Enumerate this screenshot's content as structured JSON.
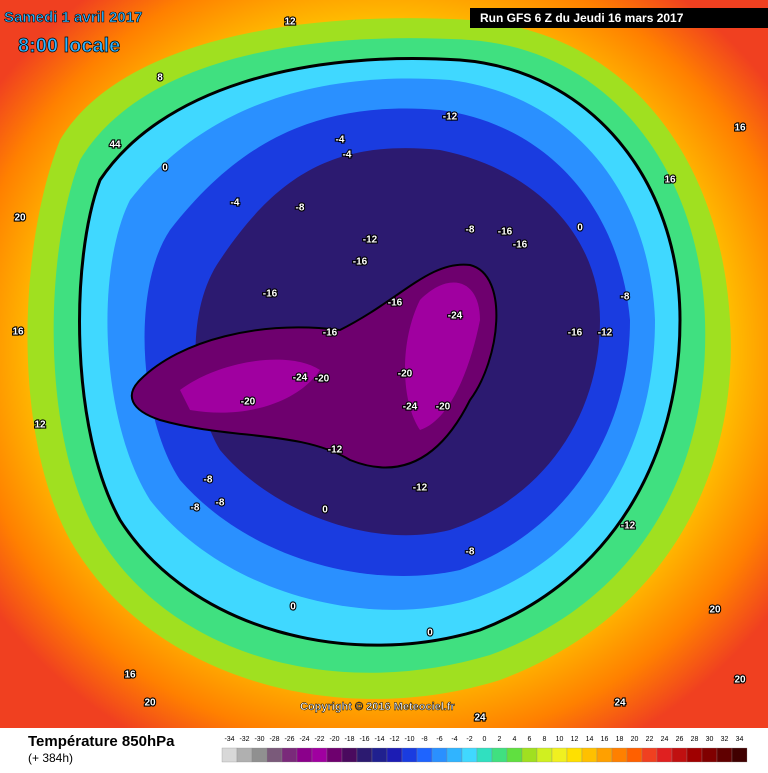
{
  "header": {
    "date": "Samedi 1 avril 2017",
    "time": "8:00 locale",
    "run": "Run GFS 6 Z du Jeudi 16 mars 2017"
  },
  "map": {
    "copyright": "Copyright © 2016 Meteociel.fr",
    "labels": [
      "12",
      "8",
      "44",
      "0",
      "-12",
      "-4",
      "-4",
      "16",
      "16",
      "-4",
      "-8",
      "-12",
      "-16",
      "-8",
      "-16",
      "-16",
      "0",
      "-16",
      "-16",
      "-24",
      "-8",
      "-16",
      "-12",
      "-16",
      "-24",
      "-20",
      "-20",
      "-20",
      "-24",
      "-20",
      "-12",
      "-12",
      "-8",
      "-8",
      "-8",
      "0",
      "-8",
      "0",
      "0",
      "24",
      "24",
      "20",
      "16",
      "-12",
      "20",
      "20",
      "16",
      "20",
      "12"
    ]
  },
  "legend": {
    "title": "Température 850hPa",
    "subtitle": "(+ 384h)",
    "scale": [
      -34,
      -32,
      -30,
      -28,
      -26,
      -24,
      -22,
      -20,
      -18,
      -16,
      -14,
      -12,
      -10,
      -8,
      -6,
      -4,
      -2,
      0,
      2,
      4,
      6,
      8,
      10,
      12,
      14,
      16,
      18,
      20,
      22,
      24,
      26,
      28,
      30,
      32,
      34
    ],
    "colors": [
      "#d8d8d8",
      "#b0b0b0",
      "#909090",
      "#7a5a7a",
      "#7a2a7a",
      "#8b008b",
      "#a000a0",
      "#6e006e",
      "#4a0a5e",
      "#2c1a70",
      "#20208f",
      "#1c1cb4",
      "#1a3ce0",
      "#1e64ff",
      "#2a90ff",
      "#30b4ff",
      "#40d8ff",
      "#30e0c0",
      "#40e080",
      "#60e040",
      "#a0e020",
      "#d0f020",
      "#f0f020",
      "#ffe000",
      "#ffc000",
      "#ffa000",
      "#ff8000",
      "#ff6000",
      "#f04020",
      "#e02020",
      "#c01010",
      "#a00000",
      "#800000",
      "#600000",
      "#400000"
    ]
  }
}
